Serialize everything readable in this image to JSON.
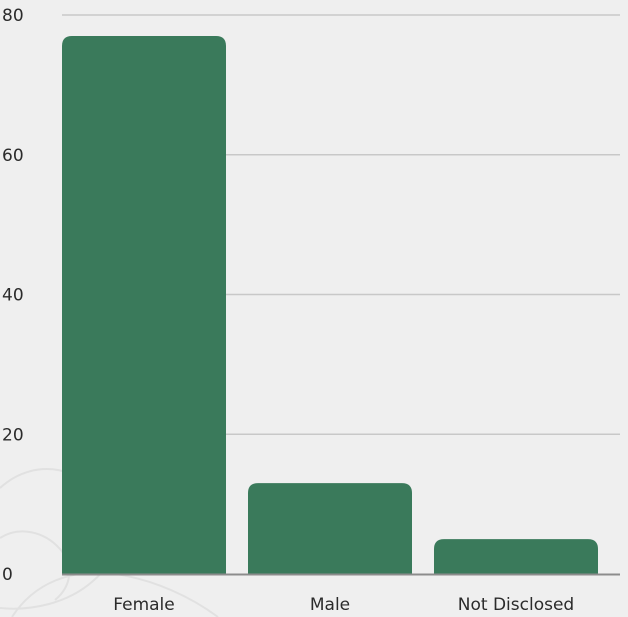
{
  "chart_data": {
    "type": "bar",
    "categories": [
      "Female",
      "Male",
      "Not Disclosed"
    ],
    "values": [
      77,
      13,
      5
    ],
    "title": "",
    "xlabel": "",
    "ylabel": "",
    "ylim": [
      0,
      80
    ],
    "yticks": [
      0,
      20,
      40,
      60,
      80
    ],
    "grid": true,
    "colors": {
      "bar": "#3a7a5b",
      "grid": "#c8c8c8",
      "axis": "#8c8c8c",
      "text": "#2b2b2b",
      "background": "#efefef"
    }
  }
}
